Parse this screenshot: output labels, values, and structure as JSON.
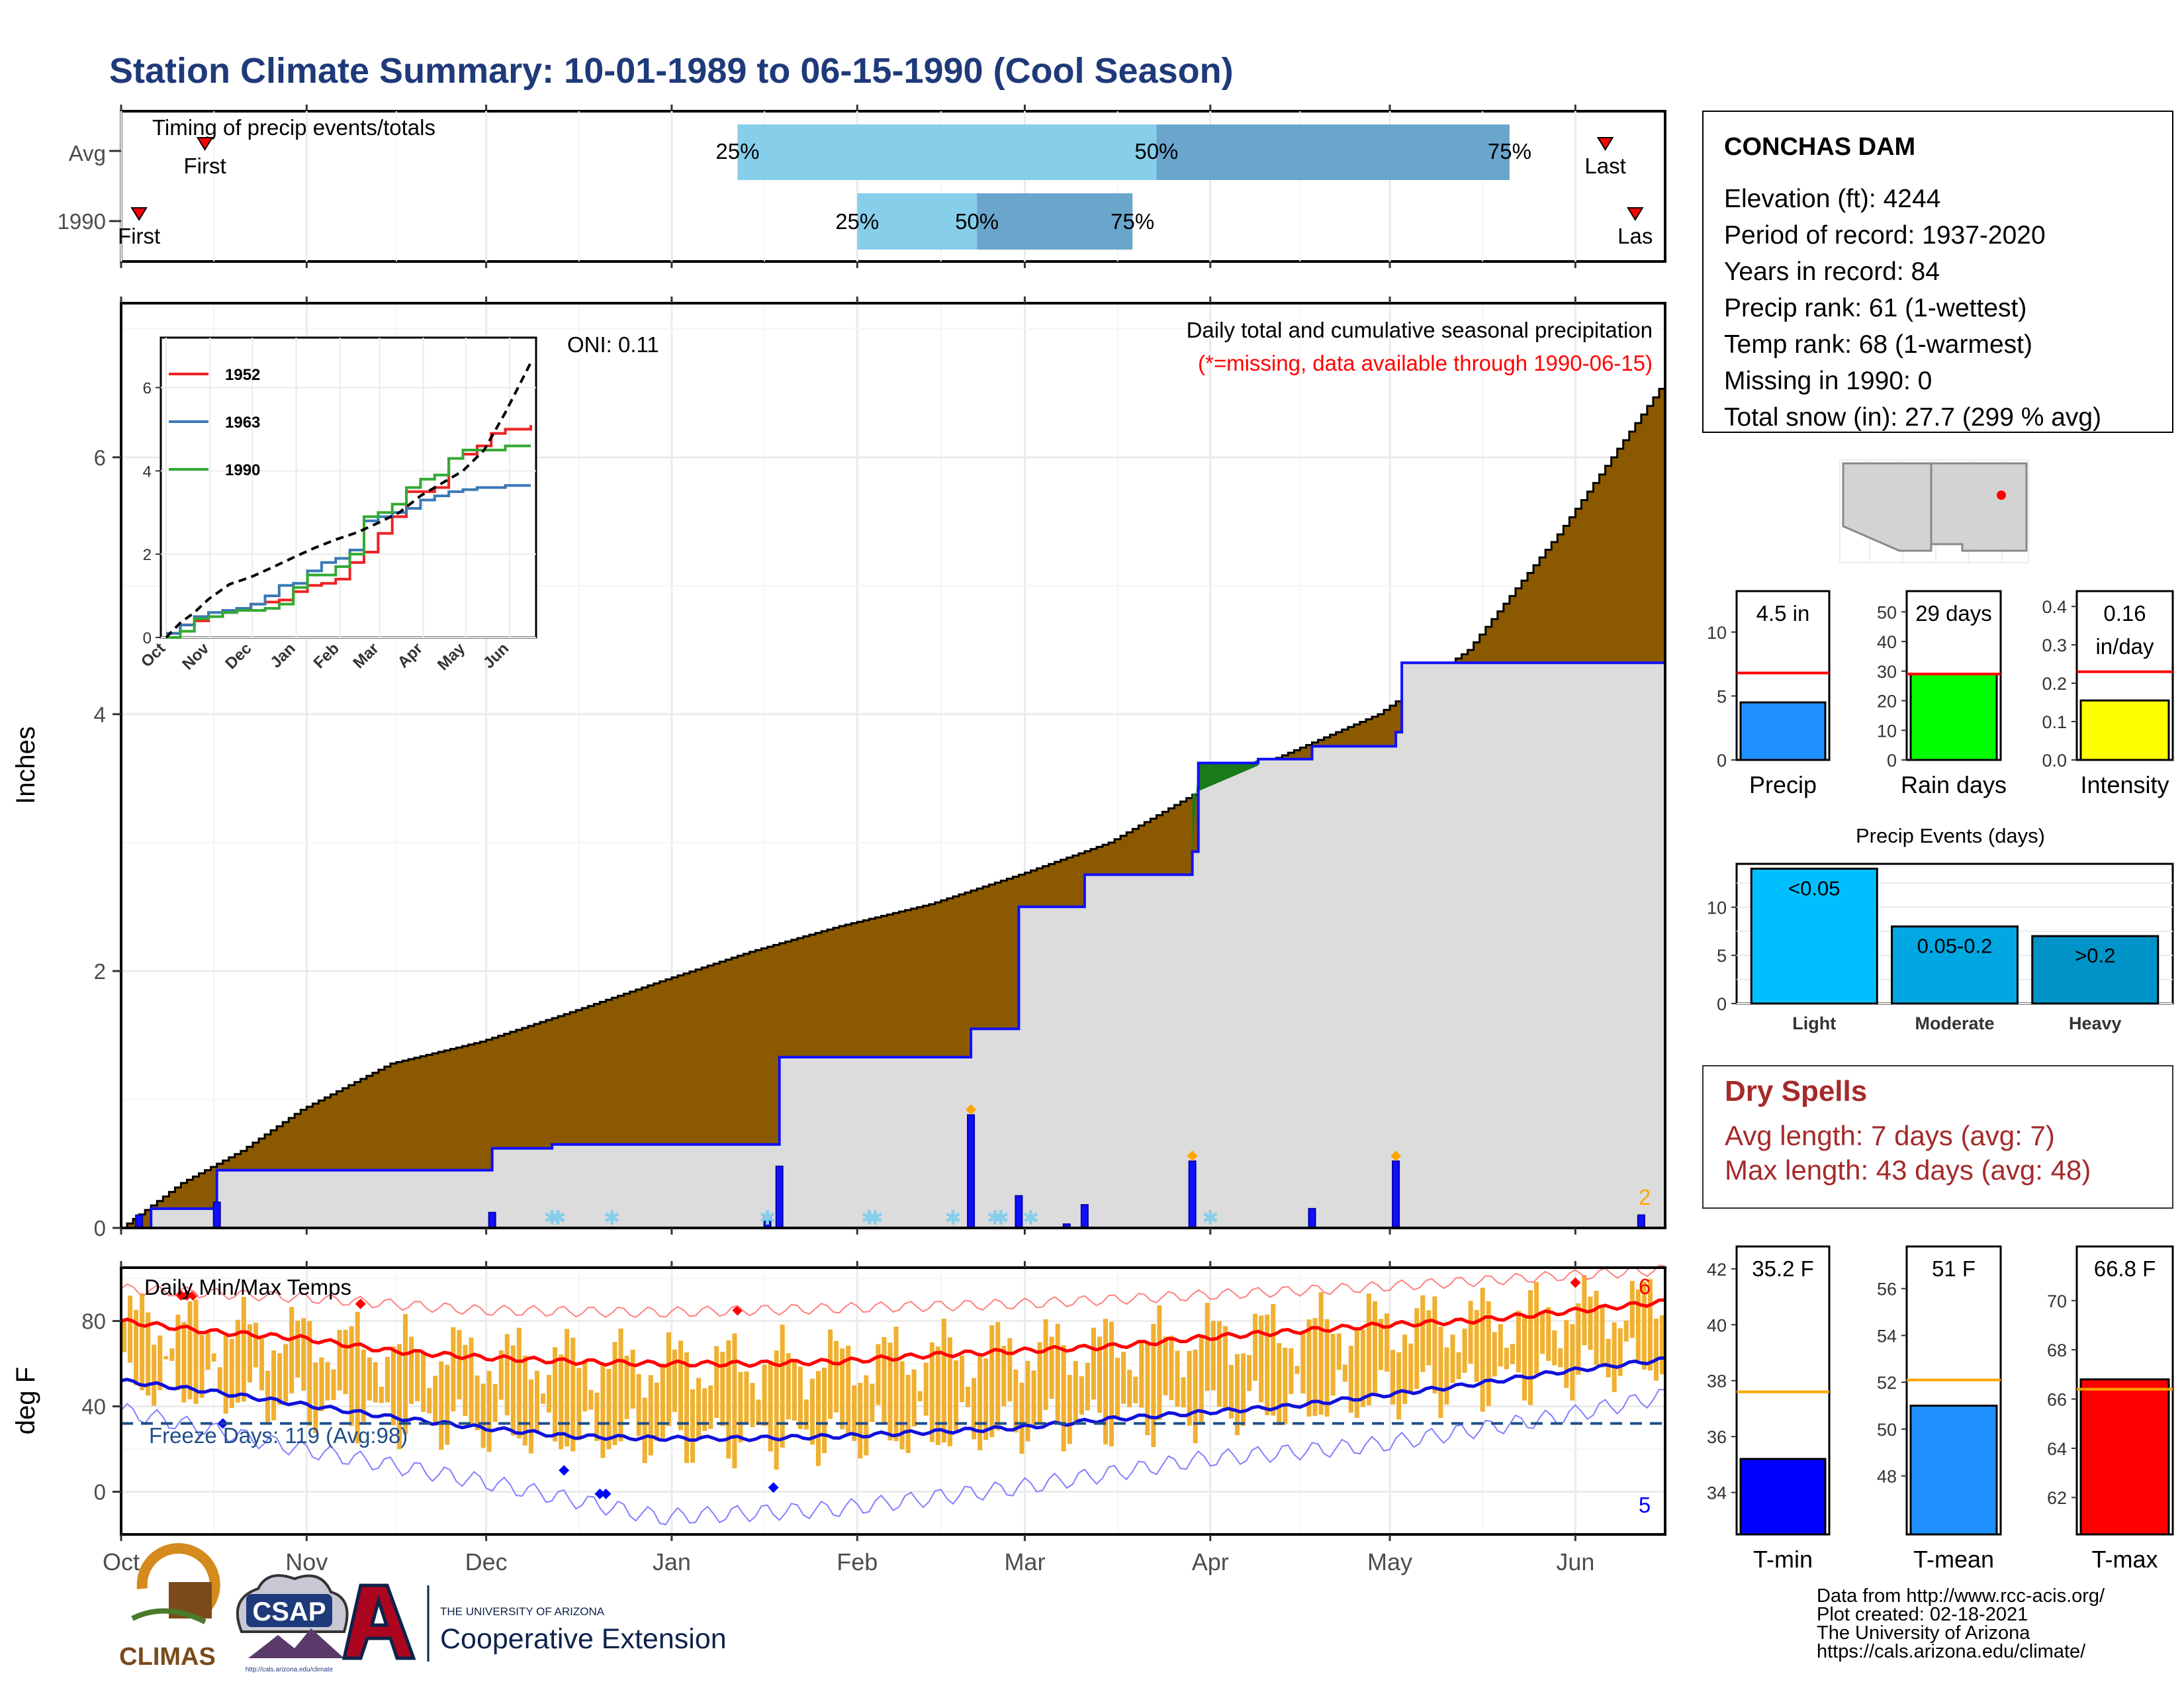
{
  "title": "Station Climate Summary: 10-01-1989 to 06-15-1990 (Cool Season)",
  "months": [
    "Oct",
    "Nov",
    "Dec",
    "Jan",
    "Feb",
    "Mar",
    "Apr",
    "May",
    "Jun"
  ],
  "colors": {
    "title": "#1f3a7a",
    "precip_fill": "#8b5a00",
    "avg_fill": "#dcdcdc",
    "season_line": "#1010ff",
    "surplus": "#1a7a1a",
    "temp_bar": "#f0b030",
    "max_line": "#ff0000",
    "min_line": "#1010dd",
    "freeze_line": "#1f4e8a",
    "dry_spells": "#a52a2a",
    "timing_light": "#87ceeb",
    "timing_dark": "#6aa5cc"
  },
  "timing": {
    "title": "Timing of precip events/totals",
    "rows": [
      {
        "label": "Avg",
        "first_label": "First",
        "last_label": "Last",
        "p25": "25%",
        "p50": "50%",
        "p75": "75%",
        "first_day": 14,
        "last_day": 248,
        "d25": 103,
        "d50": 173,
        "d75": 232
      },
      {
        "label": "1990",
        "first_label": "First",
        "last_label": "Las",
        "p25": "25%",
        "p50": "50%",
        "p75": "75%",
        "first_day": 3,
        "last_day": 253,
        "d25": 123,
        "d50": 143,
        "d75": 169
      }
    ]
  },
  "precip": {
    "ylabel": "Inches",
    "yticks": [
      "0",
      "2",
      "4",
      "6"
    ],
    "oni_label": "ONI: 0.11",
    "legend_title": "Daily total and cumulative seasonal precipitation",
    "legend_note": "(*=missing, data available through 1990-06-15)",
    "corner_count": "2"
  },
  "chart_data": [
    {
      "type": "area",
      "title": "Daily total and cumulative seasonal precipitation",
      "ylabel": "Inches",
      "ylim": [
        0,
        7.2
      ],
      "x_units": "days since Oct 1",
      "avg_cumulative": {
        "x": [
          0,
          10,
          20,
          30,
          45,
          60,
          75,
          90,
          105,
          120,
          135,
          150,
          165,
          180,
          195,
          210,
          225,
          240,
          258
        ],
        "y": [
          0,
          0.35,
          0.6,
          0.92,
          1.28,
          1.45,
          1.68,
          1.92,
          2.15,
          2.35,
          2.52,
          2.75,
          3.0,
          3.4,
          3.7,
          4.0,
          4.5,
          5.4,
          6.6
        ]
      },
      "season_cumulative": {
        "x": [
          0,
          5,
          16,
          62,
          72,
          108,
          110,
          123,
          142,
          150,
          158,
          161,
          179,
          180,
          190,
          199,
          213,
          214,
          258
        ],
        "y": [
          0,
          0.15,
          0.45,
          0.62,
          0.65,
          0.65,
          1.33,
          1.33,
          1.55,
          2.5,
          2.5,
          2.75,
          2.93,
          3.62,
          3.65,
          3.75,
          3.86,
          4.4,
          4.5
        ]
      },
      "daily_precip": [
        {
          "day": 3,
          "value": 0.1
        },
        {
          "day": 16,
          "value": 0.2
        },
        {
          "day": 62,
          "value": 0.12
        },
        {
          "day": 108,
          "value": 0.1
        },
        {
          "day": 110,
          "value": 0.48
        },
        {
          "day": 142,
          "value": 0.88
        },
        {
          "day": 150,
          "value": 0.25
        },
        {
          "day": 158,
          "value": 0.03
        },
        {
          "day": 161,
          "value": 0.18
        },
        {
          "day": 179,
          "value": 0.52
        },
        {
          "day": 199,
          "value": 0.15
        },
        {
          "day": 213,
          "value": 0.52
        },
        {
          "day": 254,
          "value": 0.1
        }
      ]
    },
    {
      "type": "line",
      "title": "",
      "series": [
        {
          "name": "1952",
          "color": "#ee2222",
          "x": [
            0,
            10,
            20,
            30,
            40,
            50,
            60,
            70,
            80,
            90,
            100,
            110,
            120,
            130,
            140,
            150,
            160,
            170,
            180,
            190,
            200,
            210,
            220,
            230,
            240,
            258
          ],
          "y": [
            0.1,
            0.3,
            0.4,
            0.5,
            0.6,
            0.7,
            0.8,
            0.85,
            0.9,
            1.1,
            1.25,
            1.3,
            1.4,
            1.8,
            2.05,
            2.5,
            2.9,
            3.5,
            3.5,
            3.6,
            4.3,
            4.4,
            4.6,
            4.9,
            5.0,
            5.1
          ]
        },
        {
          "name": "1963",
          "color": "#3a78b5",
          "x": [
            0,
            10,
            20,
            30,
            40,
            50,
            60,
            70,
            80,
            90,
            100,
            110,
            120,
            130,
            140,
            150,
            160,
            170,
            180,
            190,
            200,
            210,
            220,
            230,
            240,
            258
          ],
          "y": [
            0.1,
            0.3,
            0.5,
            0.6,
            0.65,
            0.7,
            0.8,
            1.0,
            1.25,
            1.3,
            1.6,
            1.8,
            1.9,
            2.1,
            2.8,
            2.9,
            3.0,
            3.1,
            3.3,
            3.4,
            3.5,
            3.55,
            3.6,
            3.6,
            3.65,
            3.65
          ]
        },
        {
          "name": "1990",
          "color": "#33aa33",
          "x": [
            0,
            10,
            20,
            30,
            40,
            50,
            60,
            70,
            80,
            90,
            100,
            110,
            120,
            130,
            140,
            150,
            160,
            170,
            180,
            190,
            200,
            210,
            220,
            230,
            240,
            258
          ],
          "y": [
            0,
            0.15,
            0.45,
            0.5,
            0.6,
            0.65,
            0.65,
            0.7,
            0.8,
            1.2,
            1.5,
            1.5,
            1.7,
            2.0,
            2.9,
            3.0,
            3.2,
            3.6,
            3.8,
            3.9,
            4.3,
            4.5,
            4.5,
            4.5,
            4.6,
            4.6
          ]
        }
      ],
      "avg": {
        "x": [
          0,
          10,
          20,
          30,
          45,
          60,
          75,
          90,
          105,
          120,
          135,
          150,
          165,
          180,
          195,
          210,
          225,
          240,
          258
        ],
        "y": [
          0,
          0.35,
          0.6,
          0.92,
          1.28,
          1.45,
          1.68,
          1.92,
          2.15,
          2.35,
          2.52,
          2.75,
          3.0,
          3.4,
          3.7,
          4.0,
          4.5,
          5.4,
          6.6
        ]
      },
      "ylim": [
        0,
        7.2
      ],
      "yticks": [
        "0",
        "2",
        "4",
        "6"
      ]
    },
    {
      "type": "bar",
      "title": "Daily Min/Max Temps",
      "ylabel": "deg F",
      "ylim": [
        -20,
        105
      ],
      "yticks": [
        "0",
        "40",
        "80"
      ],
      "freeze_value": 32,
      "avg_max": {
        "x": [
          0,
          15,
          30,
          45,
          60,
          75,
          90,
          105,
          120,
          135,
          150,
          165,
          180,
          195,
          210,
          225,
          240,
          258
        ],
        "y": [
          80,
          75,
          72,
          66,
          63,
          61,
          60,
          60,
          61,
          64,
          66,
          68,
          72,
          75,
          78,
          80,
          84,
          89
        ]
      },
      "avg_min": {
        "x": [
          0,
          15,
          30,
          45,
          60,
          75,
          90,
          105,
          120,
          135,
          150,
          165,
          180,
          195,
          210,
          225,
          240,
          258
        ],
        "y": [
          52,
          47,
          41,
          35,
          30,
          26,
          25,
          25,
          26,
          28,
          30,
          34,
          37,
          40,
          45,
          50,
          56,
          62
        ]
      },
      "record_high": {
        "x": [
          0,
          30,
          60,
          90,
          120,
          150,
          180,
          210,
          240,
          258
        ],
        "y": [
          95,
          91,
          85,
          84,
          86,
          88,
          92,
          96,
          101,
          104
        ]
      },
      "record_low": {
        "x": [
          0,
          30,
          60,
          90,
          120,
          150,
          180,
          210,
          240,
          258
        ],
        "y": [
          38,
          20,
          5,
          -12,
          -8,
          2,
          15,
          22,
          35,
          45
        ]
      }
    },
    {
      "type": "bar",
      "title": "Precip",
      "value_label": "4.5 in",
      "categories": [
        "Precip"
      ],
      "values": [
        4.5
      ],
      "avg": 6.8,
      "ylim": [
        0,
        13.2
      ],
      "yticks": [
        "0",
        "5",
        "10"
      ]
    },
    {
      "type": "bar",
      "title": "Rain days",
      "value_label": "29 days",
      "categories": [
        "Rain days"
      ],
      "values": [
        29
      ],
      "avg": 29,
      "ylim": [
        0,
        57
      ],
      "yticks": [
        "0",
        "10",
        "20",
        "30",
        "40",
        "50"
      ]
    },
    {
      "type": "bar",
      "title": "Intensity",
      "value_label": "0.16",
      "value_label2": "in/day",
      "categories": [
        "Intensity"
      ],
      "values": [
        0.155
      ],
      "avg": 0.23,
      "ylim": [
        0,
        0.44
      ],
      "yticks": [
        "0.0",
        "0.1",
        "0.2",
        "0.3",
        "0.4"
      ]
    },
    {
      "type": "bar",
      "title": "Precip Events (days)",
      "categories": [
        "Light",
        "Moderate",
        "Heavy"
      ],
      "bar_labels": [
        "<0.05",
        "0.05-0.2",
        ">0.2"
      ],
      "values": [
        14,
        8,
        7
      ],
      "ylim": [
        0,
        14.5
      ],
      "yticks": [
        "0",
        "5",
        "10"
      ]
    },
    {
      "type": "bar",
      "title": "T-min",
      "value_label": "35.2 F",
      "categories": [
        "T-min"
      ],
      "values": [
        35.2
      ],
      "avg": 37.6,
      "ylim": [
        32.5,
        42.8
      ],
      "yticks": [
        "34",
        "36",
        "38",
        "40",
        "42"
      ]
    },
    {
      "type": "bar",
      "title": "T-mean",
      "value_label": "51 F",
      "categories": [
        "T-mean"
      ],
      "values": [
        51
      ],
      "avg": 52.1,
      "ylim": [
        45.5,
        57.8
      ],
      "yticks": [
        "48",
        "50",
        "52",
        "54",
        "56"
      ]
    },
    {
      "type": "bar",
      "title": "T-max",
      "value_label": "66.8 F",
      "categories": [
        "T-max"
      ],
      "values": [
        66.8
      ],
      "avg": 66.4,
      "ylim": [
        60.5,
        72.2
      ],
      "yticks": [
        "62",
        "64",
        "66",
        "68",
        "70"
      ]
    }
  ],
  "temps": {
    "title": "Daily Min/Max Temps",
    "ylabel": "deg F",
    "freeze_text": "Freeze Days: 119 (Avg:98)",
    "count_high": "6",
    "count_low": "5"
  },
  "station": {
    "name": "CONCHAS DAM",
    "lines": [
      "Elevation (ft): 4244",
      "Period of record: 1937-2020",
      "Years in record: 84",
      "Precip rank: 61 (1-wettest)",
      "Temp rank: 68 (1-warmest)",
      "Missing in 1990: 0",
      "Total snow (in): 27.7 (299 % avg)"
    ]
  },
  "dry_spells": {
    "title": "Dry Spells",
    "avg_line": "Avg length: 7 days (avg: 7)",
    "max_line": "Max length: 43 days (avg: 48)"
  },
  "footer": {
    "credits": [
      "Data from http://www.rcc-acis.org/",
      "Plot created: 02-18-2021",
      "The University of Arizona",
      "https://cals.arizona.edu/climate/"
    ],
    "logo_climas": "CLIMAS",
    "logo_csap": "CSAP",
    "logo_csap_url": "http://cals.arizona.edu/climate",
    "ua_small": "THE UNIVERSITY OF ARIZONA",
    "ua_big": "Cooperative Extension"
  }
}
